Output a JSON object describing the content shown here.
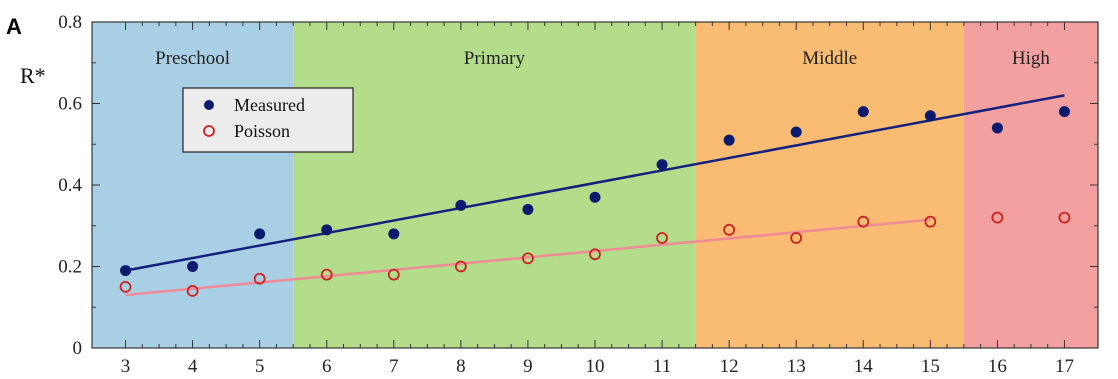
{
  "chart_data": {
    "type": "scatter",
    "panel_label": "A",
    "title": "",
    "xlabel": "",
    "ylabel": "R*",
    "xlim": [
      2.5,
      17.5
    ],
    "ylim": [
      0,
      0.8
    ],
    "x_ticks": [
      3,
      4,
      5,
      6,
      7,
      8,
      9,
      10,
      11,
      12,
      13,
      14,
      15,
      16,
      17
    ],
    "y_ticks": [
      0,
      0.2,
      0.4,
      0.6,
      0.8
    ],
    "y_tick_labels": [
      "0",
      "0.2",
      "0.4",
      "0.6",
      "0.8"
    ],
    "grid": false,
    "legend_position": "top-left",
    "bands": [
      {
        "label": "Preschool",
        "x_start": 2.5,
        "x_end": 5.5,
        "color": "#a9cfe5"
      },
      {
        "label": "Primary",
        "x_start": 5.5,
        "x_end": 11.5,
        "color": "#b3dd8a"
      },
      {
        "label": "Middle",
        "x_start": 11.5,
        "x_end": 15.5,
        "color": "#f9bc72"
      },
      {
        "label": "High",
        "x_start": 15.5,
        "x_end": 17.5,
        "color": "#f2a0a0"
      }
    ],
    "series": [
      {
        "name": "Measured",
        "marker": "filled-circle",
        "color": "#0a1a6e",
        "x": [
          3,
          4,
          5,
          6,
          7,
          8,
          9,
          10,
          11,
          12,
          13,
          14,
          15,
          16,
          17
        ],
        "y": [
          0.19,
          0.2,
          0.28,
          0.29,
          0.28,
          0.35,
          0.34,
          0.37,
          0.45,
          0.51,
          0.53,
          0.58,
          0.57,
          0.54,
          0.58
        ],
        "fit": {
          "x": [
            3,
            17
          ],
          "y": [
            0.19,
            0.62
          ],
          "color": "#14207e"
        }
      },
      {
        "name": "Poisson",
        "marker": "open-circle",
        "color": "#cc2222",
        "x": [
          3,
          4,
          5,
          6,
          7,
          8,
          9,
          10,
          11,
          12,
          13,
          14,
          15,
          16,
          17
        ],
        "y": [
          0.15,
          0.14,
          0.17,
          0.18,
          0.18,
          0.2,
          0.22,
          0.23,
          0.27,
          0.29,
          0.27,
          0.31,
          0.31,
          0.32,
          0.32
        ],
        "fit": {
          "x": [
            3,
            15
          ],
          "y": [
            0.13,
            0.315
          ],
          "color": "#ef8a96"
        }
      }
    ]
  }
}
